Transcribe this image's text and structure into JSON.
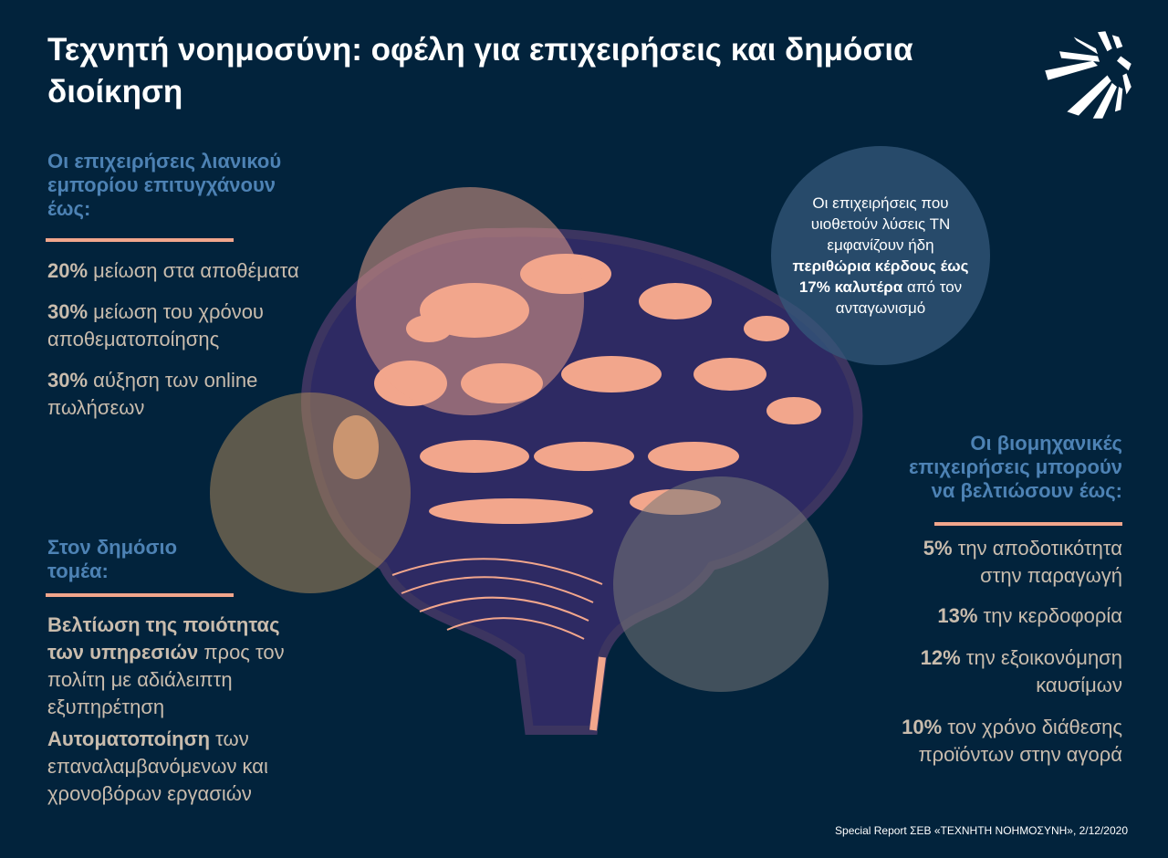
{
  "title": "Τεχνητή νοημοσύνη: οφέλη για επιχειρήσεις και δημόσια διοίκηση",
  "logo": "ΣΕΒ logo",
  "retail": {
    "heading": "Οι επιχειρήσεις λιανικού εμπορίου επιτυγχάνουν έως:",
    "items": [
      {
        "value": "20%",
        "text": " μείωση στα αποθέματα"
      },
      {
        "value": "30%",
        "text": " μείωση του χρόνου αποθεματοποίησης"
      },
      {
        "value": "30%",
        "text": " αύξηση των online πωλήσεων"
      }
    ]
  },
  "public": {
    "heading": "Στον δημόσιο τομέα:",
    "items": [
      {
        "bold": "Βελτίωση της ποιότητας των υπηρεσιών",
        "text": " προς τον πολίτη με αδιάλειπτη εξυπηρέτηση"
      },
      {
        "bold": "Αυτοματοποίηση",
        "text": " των επαναλαμβανόμενων και χρονοβόρων εργασιών"
      }
    ]
  },
  "bubble": {
    "pre": "Οι επιχειρήσεις που υιοθετούν λύσεις ΤΝ εμφανίζουν ήδη ",
    "bold": "περιθώρια κέρδους έως 17% καλυτέρα",
    "post": " από τον ανταγωνισμό"
  },
  "industry": {
    "heading": "Οι βιομηχανικές επιχειρήσεις μπορούν να βελτιώσουν έως:",
    "items": [
      {
        "value": "5%",
        "text": " την αποδοτικότητα στην παραγωγή"
      },
      {
        "value": "13%",
        "text": " την κερδοφορία"
      },
      {
        "value": "12%",
        "text": " την εξοικονόμηση καυσίμων"
      },
      {
        "value": "10%",
        "text": " τον χρόνο διάθεσης προϊόντων στην αγορά"
      }
    ]
  },
  "source": "Special Report ΣΕΒ «ΤΕΧΝΗΤΗ ΝΟΗΜΟΣΥΝΗ», 2/12/2020",
  "colors": {
    "background": "#02233c",
    "heading": "#4d82b4",
    "accent": "#f2a68c",
    "text": "#c9bcad",
    "brain": "#2e2a63"
  }
}
